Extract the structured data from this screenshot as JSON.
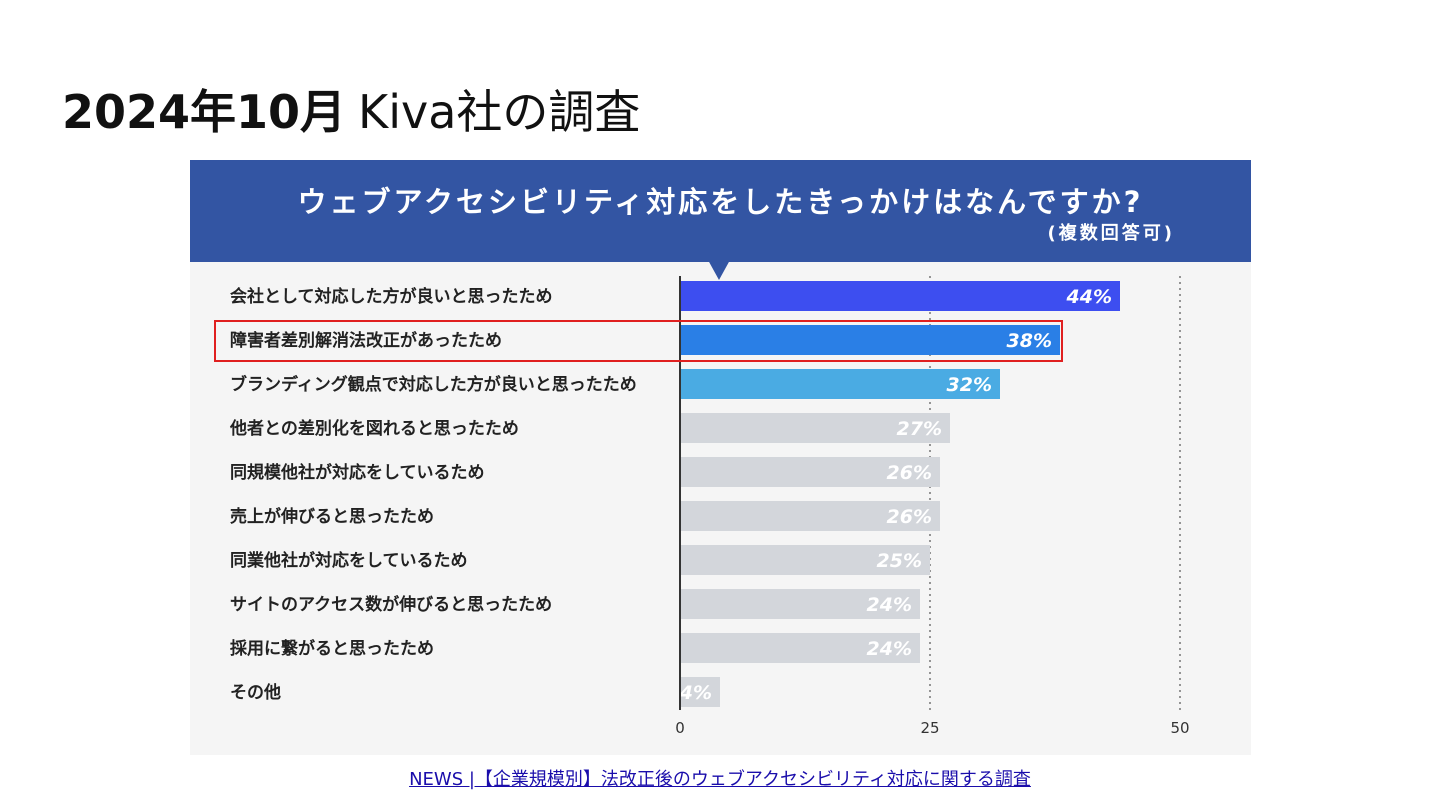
{
  "slide": {
    "title_bold": "2024年10月",
    "title_normal": "Kiva社の調査"
  },
  "source_link": "NEWS |【企業規模別】法改正後のウェブアクセシビリティ対応に関する調査",
  "chart_data": {
    "type": "bar",
    "orientation": "horizontal",
    "title": "ウェブアクセシビリティ対応をしたきっかけはなんですか?",
    "subtitle": "(複数回答可)",
    "categories": [
      "会社として対応した方が良いと思ったため",
      "障害者差別解消法改正があったため",
      "ブランディング観点で対応した方が良いと思ったため",
      "他者との差別化を図れると思ったため",
      "同規模他社が対応をしているため",
      "売上が伸びると思ったため",
      "同業他社が対応をしているため",
      "サイトのアクセス数が伸びると思ったため",
      "採用に繋がると思ったため",
      "その他"
    ],
    "values": [
      44,
      38,
      32,
      27,
      26,
      26,
      25,
      24,
      24,
      4
    ],
    "value_labels": [
      "44%",
      "38%",
      "32%",
      "27%",
      "26%",
      "26%",
      "25%",
      "24%",
      "24%",
      "4%"
    ],
    "bar_colors": [
      "#3d4ef0",
      "#2a7fe6",
      "#4aabe3",
      "#d3d6db",
      "#d3d6db",
      "#d3d6db",
      "#d3d6db",
      "#d3d6db",
      "#d3d6db",
      "#d3d6db"
    ],
    "highlighted_category": "障害者差別解消法改正があったため",
    "highlight_color": "#e02020",
    "xlim": [
      0,
      50
    ],
    "xticks": [
      0,
      25,
      50
    ],
    "xtick_labels": [
      "0",
      "25",
      "50"
    ],
    "gridlines": "dotted at 25 and 50",
    "legend": "none"
  },
  "colors": {
    "banner": "#3355a3",
    "panel_background": "#f5f5f5",
    "axis": "#333333",
    "link": "#1a0dab"
  }
}
